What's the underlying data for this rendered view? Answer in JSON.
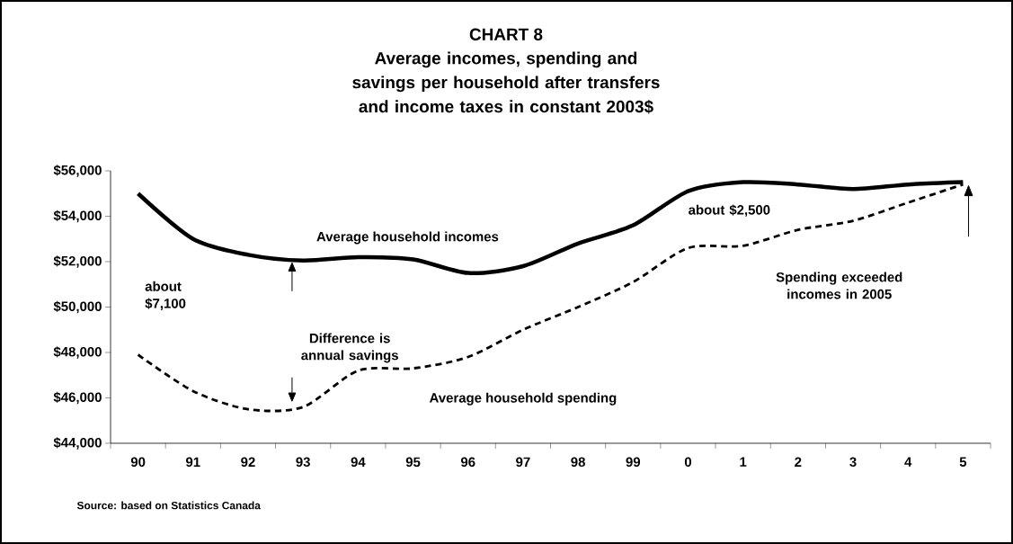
{
  "chart_data": {
    "type": "line",
    "title": "CHART 8",
    "subtitle": "Average incomes, spending and savings per household after transfers and income taxes in constant 2003$",
    "categories": [
      "90",
      "91",
      "92",
      "93",
      "94",
      "95",
      "96",
      "97",
      "98",
      "99",
      "0",
      "1",
      "2",
      "3",
      "4",
      "5"
    ],
    "series": [
      {
        "name": "Average household incomes",
        "color": "#000000",
        "line_style": "solid",
        "values": [
          55000,
          53000,
          52300,
          52050,
          52200,
          52100,
          51500,
          51800,
          52800,
          53600,
          55100,
          55500,
          55400,
          55200,
          55400,
          55500
        ]
      },
      {
        "name": "Average household spending",
        "color": "#000000",
        "line_style": "dashed",
        "values": [
          47900,
          46300,
          45500,
          45600,
          47200,
          47300,
          47800,
          49000,
          50000,
          51100,
          52600,
          52700,
          53400,
          53800,
          54600,
          55400
        ]
      }
    ],
    "ylim": [
      44000,
      56000
    ],
    "yticks": [
      {
        "value": 44000,
        "label": "$44,000"
      },
      {
        "value": 46000,
        "label": "$46,000"
      },
      {
        "value": 48000,
        "label": "$48,000"
      },
      {
        "value": 50000,
        "label": "$50,000"
      },
      {
        "value": 52000,
        "label": "$52,000"
      },
      {
        "value": 54000,
        "label": "$54,000"
      },
      {
        "value": 56000,
        "label": "$56,000"
      }
    ],
    "annotations": [
      "about $7,100",
      "Difference is annual savings",
      "about $2,500",
      "Spending exceeded incomes in 2005",
      "Source: based on Statistics Canada"
    ]
  }
}
